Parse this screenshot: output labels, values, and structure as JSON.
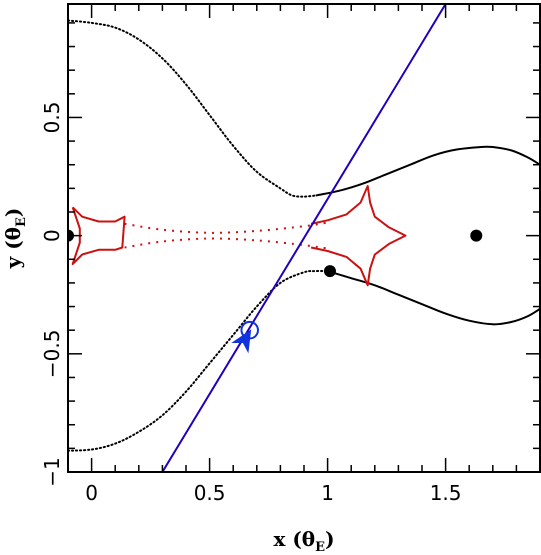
{
  "chart_data": {
    "type": "line",
    "xlim": [
      -0.1,
      1.9
    ],
    "ylim": [
      -1.0,
      0.98
    ],
    "x_ticks": [
      {
        "value": 0,
        "label": "0"
      },
      {
        "value": 0.5,
        "label": "0.5"
      },
      {
        "value": 1,
        "label": "1"
      },
      {
        "value": 1.5,
        "label": "1.5"
      }
    ],
    "y_ticks": [
      {
        "value": -1,
        "label": "−1"
      },
      {
        "value": -0.5,
        "label": "−0.5"
      },
      {
        "value": 0,
        "label": "0"
      },
      {
        "value": 0.5,
        "label": "0.5"
      }
    ],
    "x_minor_step": 0.1,
    "y_minor_step": 0.1,
    "xlabel_main": "x (θ",
    "xlabel_sub": "E",
    "xlabel_close": ")",
    "ylabel_main": "y (θ",
    "ylabel_sub": "E",
    "ylabel_close": ")",
    "grid": false,
    "colors": {
      "critical_curve": "#000000",
      "caustic": "#cc1111",
      "trajectory": "#2200bb",
      "source": "#1133dd",
      "lens": "#000000"
    },
    "critical_curve": {
      "upper_dotted": [
        [
          -0.1,
          0.91
        ],
        [
          0.0,
          0.9
        ],
        [
          0.1,
          0.88
        ],
        [
          0.2,
          0.83
        ],
        [
          0.3,
          0.75
        ],
        [
          0.4,
          0.64
        ],
        [
          0.5,
          0.51
        ],
        [
          0.6,
          0.38
        ],
        [
          0.7,
          0.27
        ],
        [
          0.8,
          0.2
        ],
        [
          0.85,
          0.17
        ],
        [
          0.9,
          0.165
        ],
        [
          0.95,
          0.17
        ]
      ],
      "upper_solid": [
        [
          0.95,
          0.17
        ],
        [
          1.05,
          0.19
        ],
        [
          1.15,
          0.22
        ],
        [
          1.25,
          0.26
        ],
        [
          1.35,
          0.3
        ],
        [
          1.45,
          0.34
        ],
        [
          1.55,
          0.365
        ],
        [
          1.65,
          0.375
        ],
        [
          1.7,
          0.375
        ],
        [
          1.78,
          0.36
        ],
        [
          1.85,
          0.33
        ],
        [
          1.9,
          0.3
        ]
      ],
      "lower_dotted": [
        [
          -0.1,
          -0.91
        ],
        [
          0.0,
          -0.905
        ],
        [
          0.1,
          -0.88
        ],
        [
          0.2,
          -0.83
        ],
        [
          0.3,
          -0.76
        ],
        [
          0.4,
          -0.66
        ],
        [
          0.5,
          -0.54
        ],
        [
          0.6,
          -0.42
        ],
        [
          0.7,
          -0.3
        ],
        [
          0.8,
          -0.2
        ],
        [
          0.9,
          -0.155
        ],
        [
          0.95,
          -0.15
        ],
        [
          1.0,
          -0.15
        ]
      ],
      "lower_solid": [
        [
          1.0,
          -0.15
        ],
        [
          1.1,
          -0.18
        ],
        [
          1.2,
          -0.21
        ],
        [
          1.3,
          -0.25
        ],
        [
          1.4,
          -0.29
        ],
        [
          1.5,
          -0.33
        ],
        [
          1.6,
          -0.36
        ],
        [
          1.7,
          -0.375
        ],
        [
          1.78,
          -0.365
        ],
        [
          1.85,
          -0.34
        ],
        [
          1.9,
          -0.31
        ]
      ]
    },
    "caustic": {
      "left_part": [
        [
          -0.08,
          0.12
        ],
        [
          -0.04,
          0.08
        ],
        [
          0.03,
          0.06
        ],
        [
          0.1,
          0.06
        ],
        [
          0.14,
          0.08
        ],
        [
          0.13,
          -0.05
        ],
        [
          0.1,
          -0.06
        ],
        [
          0.03,
          -0.06
        ],
        [
          -0.04,
          -0.08
        ],
        [
          -0.08,
          -0.12
        ],
        [
          -0.05,
          -0.03
        ],
        [
          -0.05,
          0.03
        ],
        [
          -0.08,
          0.12
        ]
      ],
      "bridge_upper": [
        [
          0.14,
          0.05
        ],
        [
          0.3,
          0.025
        ],
        [
          0.5,
          0.012
        ],
        [
          0.7,
          0.02
        ],
        [
          0.9,
          0.04
        ],
        [
          1.0,
          0.055
        ]
      ],
      "bridge_lower": [
        [
          0.14,
          -0.05
        ],
        [
          0.3,
          -0.025
        ],
        [
          0.5,
          -0.012
        ],
        [
          0.7,
          -0.02
        ],
        [
          0.9,
          -0.04
        ],
        [
          1.0,
          -0.055
        ]
      ],
      "right_part": [
        [
          0.93,
          0.05
        ],
        [
          1.0,
          0.065
        ],
        [
          1.08,
          0.09
        ],
        [
          1.14,
          0.14
        ],
        [
          1.17,
          0.21
        ],
        [
          1.18,
          0.14
        ],
        [
          1.2,
          0.08
        ],
        [
          1.26,
          0.035
        ],
        [
          1.33,
          0.0
        ],
        [
          1.26,
          -0.035
        ],
        [
          1.2,
          -0.08
        ],
        [
          1.18,
          -0.14
        ],
        [
          1.17,
          -0.21
        ],
        [
          1.14,
          -0.14
        ],
        [
          1.08,
          -0.09
        ],
        [
          1.0,
          -0.065
        ],
        [
          0.93,
          -0.05
        ]
      ]
    },
    "trajectory": {
      "start": [
        0.3,
        -1.0
      ],
      "end": [
        1.5,
        0.98
      ]
    },
    "lenses": [
      {
        "x": -0.1,
        "y": 0.0
      },
      {
        "x": 1.01,
        "y": -0.15
      },
      {
        "x": 1.63,
        "y": 0.0
      }
    ],
    "source": {
      "x": 0.67,
      "y": -0.4,
      "radius": 0.035
    },
    "arrow": {
      "x": 0.65,
      "y": -0.44,
      "direction": [
        0.518,
        0.855
      ]
    }
  }
}
